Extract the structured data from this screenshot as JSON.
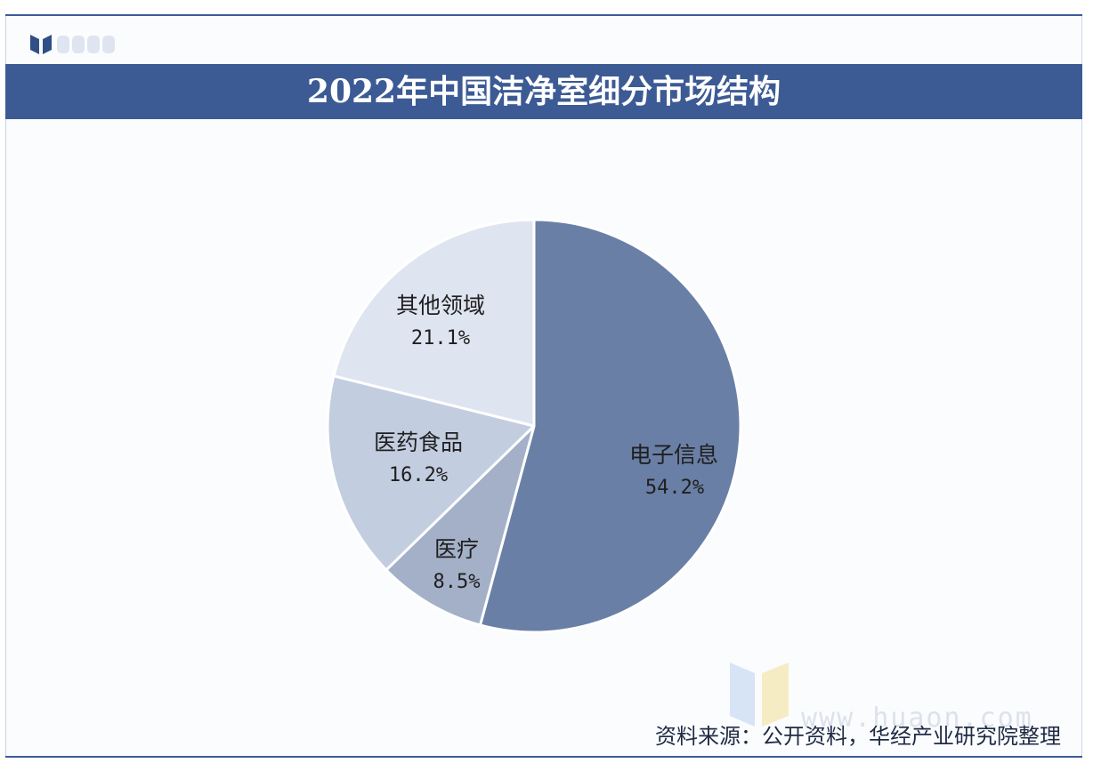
{
  "header": {
    "title": "2022年中国洁净室细分市场结构"
  },
  "footer": {
    "source": "资料来源：公开资料，华经产业研究院整理",
    "watermark_url": "www.huaon.com"
  },
  "colors": {
    "banner": "#3c5a94",
    "slice_electronics": "#6a7fa6",
    "slice_medical": "#a3b0c8",
    "slice_pharma_food": "#c3cde0",
    "slice_other": "#dfe5f0",
    "divider": "#ffffff"
  },
  "chart_data": {
    "type": "pie",
    "title": "2022年中国洁净室细分市场结构",
    "start_angle_deg": 0,
    "direction": "clockwise",
    "slices": [
      {
        "label": "电子信息",
        "value": 54.2,
        "display": "54.2%",
        "color": "#6a7fa6"
      },
      {
        "label": "医疗",
        "value": 8.5,
        "display": "8.5%",
        "color": "#a3b0c8"
      },
      {
        "label": "医药食品",
        "value": 16.2,
        "display": "16.2%",
        "color": "#c3cde0"
      },
      {
        "label": "其他领域",
        "value": 21.1,
        "display": "21.1%",
        "color": "#dfe5f0"
      }
    ]
  }
}
